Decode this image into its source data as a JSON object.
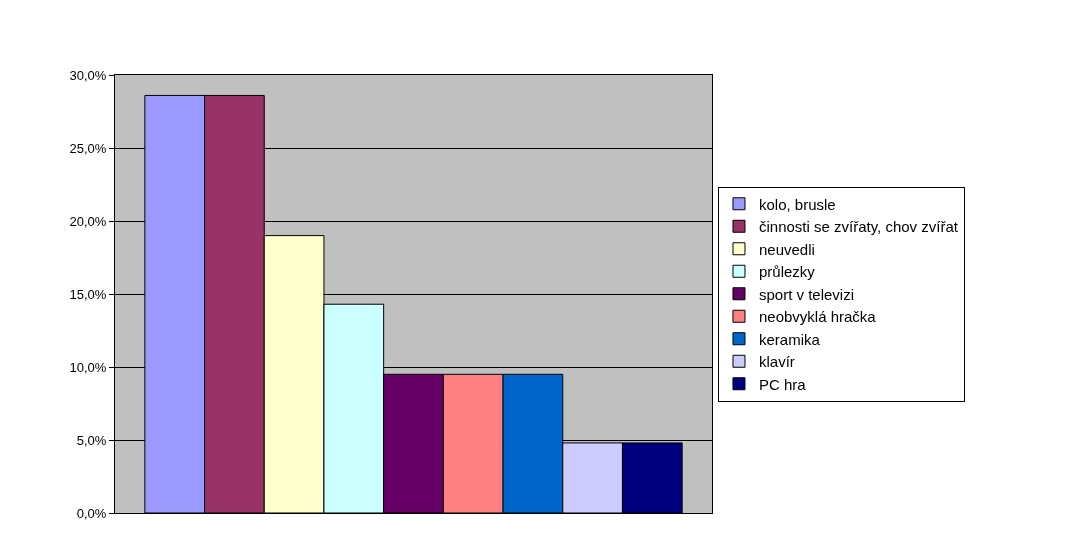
{
  "chart_data": {
    "type": "bar",
    "categories": [
      null
    ],
    "series": [
      {
        "name": "kolo, brusle",
        "color": "#9999ff",
        "values": [
          28.6
        ]
      },
      {
        "name": "činnosti se zvířaty, chov zvířat",
        "color": "#993366",
        "values": [
          28.6
        ]
      },
      {
        "name": "neuvedli",
        "color": "#ffffcc",
        "values": [
          19.0
        ]
      },
      {
        "name": "průlezky",
        "color": "#ccffff",
        "values": [
          14.3
        ]
      },
      {
        "name": "sport v televizi",
        "color": "#660066",
        "values": [
          9.5
        ]
      },
      {
        "name": "neobvyklá hračka",
        "color": "#ff8080",
        "values": [
          9.5
        ]
      },
      {
        "name": "keramika",
        "color": "#0066cc",
        "values": [
          9.5
        ]
      },
      {
        "name": "klavír",
        "color": "#ccccff",
        "values": [
          4.8
        ]
      },
      {
        "name": "PC hra",
        "color": "#000080",
        "values": [
          4.8
        ]
      }
    ],
    "ylim": [
      0,
      30
    ],
    "yticks": [
      {
        "value": 0,
        "label": "0,0%"
      },
      {
        "value": 5,
        "label": "5,0%"
      },
      {
        "value": 10,
        "label": "10,0%"
      },
      {
        "value": 15,
        "label": "15,0%"
      },
      {
        "value": 20,
        "label": "20,0%"
      },
      {
        "value": 25,
        "label": "25,0%"
      },
      {
        "value": 30,
        "label": "30,0%"
      }
    ],
    "grid": "y",
    "legend": "right"
  }
}
